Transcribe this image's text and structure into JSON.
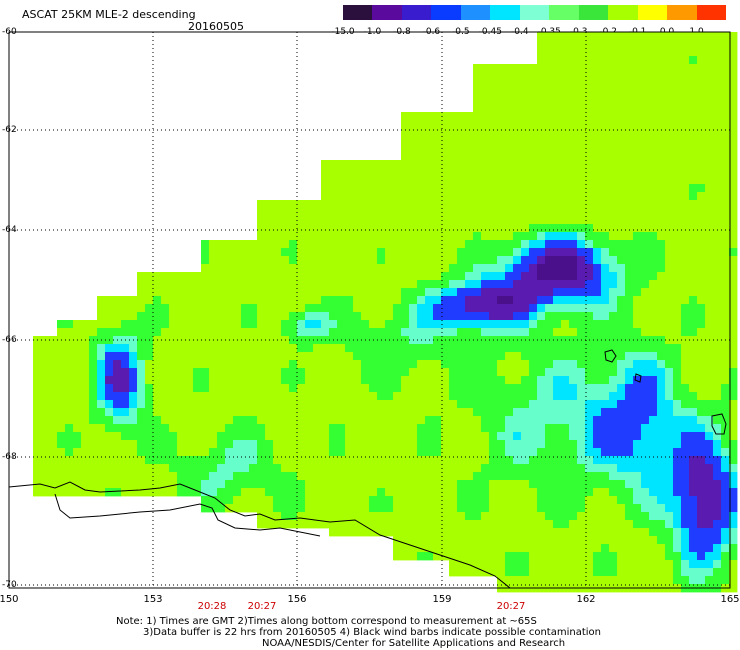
{
  "header": {
    "title": "ASCAT 25KM MLE-2 descending",
    "date": "20160505"
  },
  "colorbar": {
    "labels": [
      "-15.0",
      "-1.0",
      "-0.8",
      "-0.6",
      "-0.5",
      "-0.45",
      "-0.4",
      "-0.35",
      "-0.3",
      "-0.2",
      "-0.1",
      "0.0",
      "1.0"
    ],
    "colors": [
      "#2b0f3d",
      "#5a0a9c",
      "#3a1ccf",
      "#0a3cff",
      "#1e90ff",
      "#00e5ff",
      "#7fffd4",
      "#66ff66",
      "#39e639",
      "#a8ff00",
      "#ffff00",
      "#ff9900",
      "#ff3300"
    ]
  },
  "axes": {
    "lat_labels": [
      "-60",
      "-62",
      "-64",
      "-66",
      "-68",
      "-70"
    ],
    "lon_labels": [
      "150",
      "153",
      "156",
      "159",
      "162",
      "165"
    ],
    "time_labels": [
      "20:28",
      "20:27",
      "20:27"
    ]
  },
  "footer": {
    "line1": "Note: 1) Times are GMT 2)Times along bottom correspond to measurement at ~65S",
    "line2": "3)Data buffer is 22 hrs from 20160505 4) Black wind barbs indicate possible contamination",
    "line3": "NOAA/NESDIS/Center for Satellite Applications and Research"
  },
  "palette": {
    "lime": "#a8ff00",
    "green": "#33ff33",
    "aqua": "#66ffcc",
    "cyan": "#00e5ff",
    "blue": "#1f3cff",
    "violet": "#5a1cb0",
    "deep": "#4a0f8a"
  }
}
